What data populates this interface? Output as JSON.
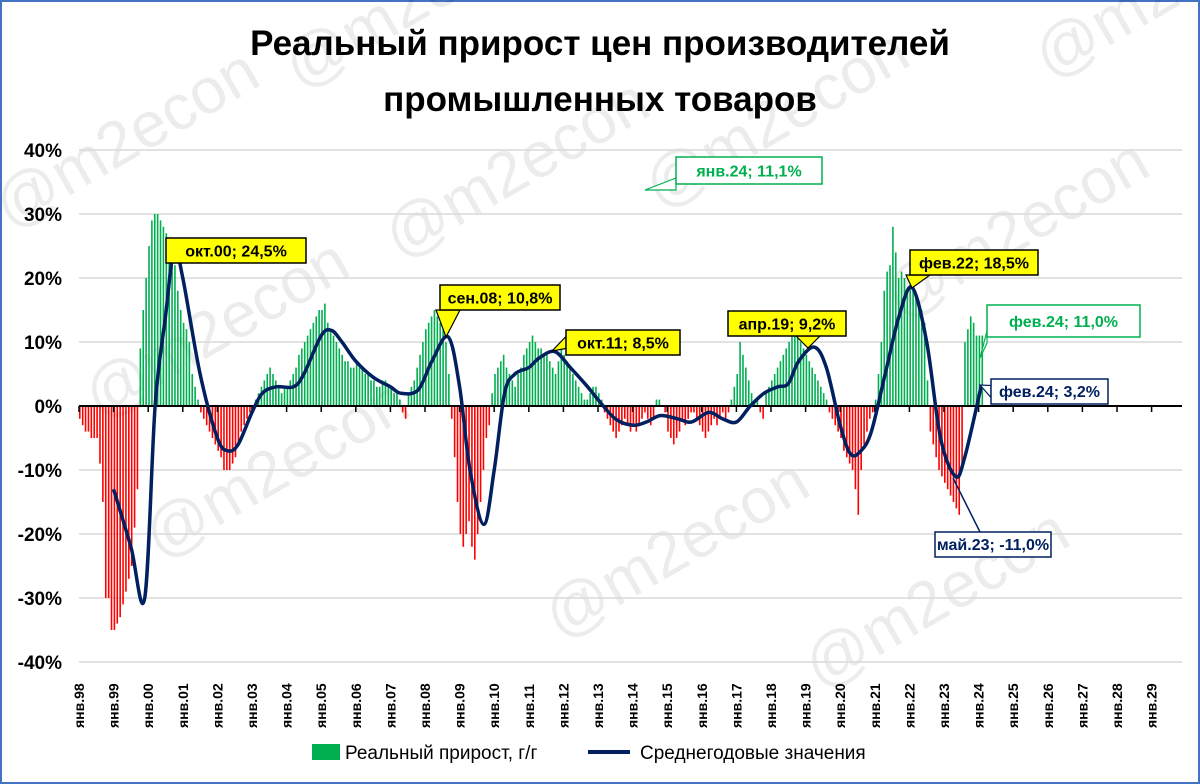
{
  "chart_data": {
    "type": "bar+line",
    "title_lines": [
      "Реальный прирост цен производителей",
      "промышленных товаров"
    ],
    "ylim": [
      -40,
      40
    ],
    "yticks": [
      40,
      30,
      20,
      10,
      0,
      -10,
      -20,
      -30,
      -40
    ],
    "ytick_labels": [
      "40%",
      "30%",
      "20%",
      "10%",
      "0%",
      "-10%",
      "-20%",
      "-30%",
      "-40%"
    ],
    "x_years": [
      1998,
      2029
    ],
    "xtick_labels": [
      "янв.98",
      "янв.99",
      "янв.00",
      "янв.01",
      "янв.02",
      "янв.03",
      "янв.04",
      "янв.05",
      "янв.06",
      "янв.07",
      "янв.08",
      "янв.09",
      "янв.10",
      "янв.11",
      "янв.12",
      "янв.13",
      "янв.14",
      "янв.15",
      "янв.16",
      "янв.17",
      "янв.18",
      "янв.19",
      "янв.20",
      "янв.21",
      "янв.22",
      "янв.23",
      "янв.24",
      "янв.25",
      "янв.26",
      "янв.27",
      "янв.28",
      "янв.29"
    ],
    "grid": true,
    "legend_position": "bottom",
    "series": [
      {
        "name": "Реальный прирост, г/г",
        "type": "bar",
        "color_positive": "#00b050",
        "color_negative": "#ff0000",
        "start": "1998-01",
        "monthly_values": [
          -2,
          -3,
          -4,
          -4,
          -5,
          -5,
          -5,
          -9,
          -15,
          -30,
          -30,
          -35,
          -35,
          -34,
          -33,
          -31,
          -29,
          -27,
          -25,
          -19,
          -13,
          9,
          15,
          20,
          25,
          29,
          30,
          30,
          29,
          28,
          27,
          25,
          24,
          22,
          18,
          15,
          13,
          12,
          10,
          5,
          3,
          1,
          -1,
          -2,
          -3,
          -4,
          -5,
          -6,
          -7,
          -8,
          -10,
          -10,
          -10,
          -9,
          -8,
          -6,
          -4,
          -3,
          -2,
          -1,
          0,
          1,
          2,
          3,
          4,
          5,
          6,
          5,
          4,
          3,
          2,
          3,
          3,
          4,
          5,
          6,
          8,
          9,
          10,
          11,
          12,
          13,
          14,
          15,
          15,
          16,
          13,
          12,
          11,
          10,
          9,
          8,
          7,
          7,
          6,
          6,
          7,
          6,
          6,
          5,
          5,
          4,
          4,
          3,
          3,
          4,
          4,
          3,
          3,
          2,
          2,
          1,
          -1,
          -2,
          2,
          3,
          4,
          6,
          8,
          10,
          12,
          13,
          14,
          15,
          14,
          13,
          12,
          10,
          5,
          -2,
          -8,
          -15,
          -20,
          -22,
          -20,
          -18,
          -22,
          -24,
          -20,
          -15,
          -10,
          -5,
          -3,
          2,
          5,
          6,
          7,
          8,
          6,
          5,
          4,
          3,
          5,
          6,
          8,
          9,
          10,
          11,
          10,
          9,
          9,
          8,
          8,
          7,
          6,
          5,
          7,
          9,
          8,
          7,
          6,
          5,
          4,
          3,
          2,
          1,
          1,
          2,
          3,
          3,
          2,
          1,
          -1,
          -2,
          -3,
          -4,
          -5,
          -4,
          -3,
          -2,
          -3,
          -4,
          -3,
          -4,
          -3,
          -2,
          -1,
          -2,
          -3,
          -2,
          1,
          1,
          0,
          -1,
          -4,
          -5,
          -6,
          -5,
          -4,
          -2,
          -3,
          -2,
          -1,
          -1,
          -2,
          -3,
          -4,
          -5,
          -4,
          -3,
          -2,
          -3,
          -2,
          -1,
          -2,
          -1,
          1,
          3,
          5,
          10,
          8,
          6,
          4,
          2,
          1,
          1,
          -1,
          -2,
          2,
          3,
          4,
          5,
          6,
          7,
          8,
          9,
          10,
          11,
          12,
          11,
          10,
          9,
          8,
          7,
          6,
          5,
          4,
          3,
          2,
          1,
          -1,
          -2,
          -3,
          -4,
          -5,
          -7,
          -8,
          -9,
          -10,
          -13,
          -17,
          -10,
          -6,
          -4,
          -2,
          -1,
          1,
          5,
          10,
          18,
          21,
          22,
          28,
          24,
          20,
          21,
          20,
          18,
          19,
          18,
          17,
          16,
          15,
          13,
          4,
          -4,
          -6,
          -8,
          -10,
          -11,
          -12,
          -13,
          -14,
          -15,
          -16,
          -17,
          -10,
          10,
          12,
          14,
          13,
          11,
          11,
          11
        ]
      },
      {
        "name": "Среднегодовые значения",
        "type": "line",
        "color": "#002060",
        "points": [
          [
            1999.0,
            -13
          ],
          [
            1999.5,
            -22
          ],
          [
            1999.9,
            -30
          ],
          [
            2000.2,
            0
          ],
          [
            2000.5,
            14
          ],
          [
            2000.75,
            24.5
          ],
          [
            2001.0,
            20
          ],
          [
            2001.5,
            5
          ],
          [
            2002.0,
            -5
          ],
          [
            2002.3,
            -7
          ],
          [
            2002.6,
            -6
          ],
          [
            2003.0,
            -1
          ],
          [
            2003.3,
            2
          ],
          [
            2003.7,
            3
          ],
          [
            2004.2,
            3
          ],
          [
            2004.5,
            5
          ],
          [
            2005.0,
            11
          ],
          [
            2005.3,
            11.8
          ],
          [
            2005.6,
            10
          ],
          [
            2006.0,
            7
          ],
          [
            2006.5,
            4.5
          ],
          [
            2007.0,
            3
          ],
          [
            2007.3,
            2
          ],
          [
            2007.8,
            2.5
          ],
          [
            2008.2,
            7
          ],
          [
            2008.67,
            10.8
          ],
          [
            2009.0,
            3
          ],
          [
            2009.3,
            -10
          ],
          [
            2009.7,
            -18.5
          ],
          [
            2010.0,
            -10
          ],
          [
            2010.3,
            2
          ],
          [
            2010.6,
            5
          ],
          [
            2011.0,
            6
          ],
          [
            2011.3,
            7.5
          ],
          [
            2011.75,
            8.5
          ],
          [
            2012.2,
            6
          ],
          [
            2012.7,
            3
          ],
          [
            2013.0,
            1
          ],
          [
            2013.5,
            -2
          ],
          [
            2014.0,
            -3
          ],
          [
            2014.4,
            -2.5
          ],
          [
            2014.8,
            -1.5
          ],
          [
            2015.3,
            -2
          ],
          [
            2015.7,
            -2.5
          ],
          [
            2016.2,
            -1
          ],
          [
            2016.6,
            -2
          ],
          [
            2017.0,
            -2.5
          ],
          [
            2017.4,
            0
          ],
          [
            2017.8,
            2
          ],
          [
            2018.2,
            3
          ],
          [
            2018.5,
            3.5
          ],
          [
            2018.8,
            7
          ],
          [
            2019.25,
            9.2
          ],
          [
            2019.6,
            6
          ],
          [
            2020.0,
            -3
          ],
          [
            2020.3,
            -7.5
          ],
          [
            2020.6,
            -7
          ],
          [
            2020.9,
            -4
          ],
          [
            2021.3,
            5
          ],
          [
            2021.7,
            14
          ],
          [
            2022.08,
            18.5
          ],
          [
            2022.5,
            10
          ],
          [
            2022.9,
            -5
          ],
          [
            2023.33,
            -11
          ],
          [
            2023.6,
            -8
          ],
          [
            2024.08,
            3.2
          ]
        ]
      }
    ],
    "annotations": [
      {
        "text": "окт.00; 24,5%",
        "style": "yellow"
      },
      {
        "text": "сен.08; 10,8%",
        "style": "yellow"
      },
      {
        "text": "окт.11; 8,5%",
        "style": "yellow"
      },
      {
        "text": "апр.19; 9,2%",
        "style": "yellow"
      },
      {
        "text": "фев.22; 18,5%",
        "style": "yellow"
      },
      {
        "text": "янв.24; 11,1%",
        "style": "green"
      },
      {
        "text": "фев.24; 11,0%",
        "style": "green"
      },
      {
        "text": "фев.24; 3,2%",
        "style": "navy"
      },
      {
        "text": "май.23; -11,0%",
        "style": "navy"
      }
    ],
    "watermark": "@m2econ"
  },
  "colors": {
    "frame": "#4472c4",
    "grid": "#d9d9d9",
    "yellow": "#ffff00",
    "green": "#00b050",
    "navy": "#002060"
  }
}
